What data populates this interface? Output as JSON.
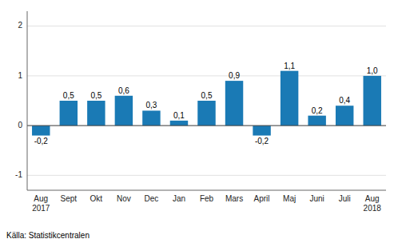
{
  "chart_data": {
    "type": "bar",
    "categories": [
      "Aug\n2017",
      "Sept",
      "Okt",
      "Nov",
      "Dec",
      "Jan",
      "Feb",
      "Mars",
      "April",
      "Maj",
      "Juni",
      "Juli",
      "Aug\n2018"
    ],
    "values": [
      -0.2,
      0.5,
      0.5,
      0.6,
      0.3,
      0.1,
      0.5,
      0.9,
      -0.2,
      1.1,
      0.2,
      0.4,
      1.0
    ],
    "value_labels": [
      "-0,2",
      "0,5",
      "0,5",
      "0,6",
      "0,3",
      "0,1",
      "0,5",
      "0,9",
      "-0,2",
      "1,1",
      "0,2",
      "0,4",
      "1,0"
    ],
    "data_labels": true,
    "color": "#1a7ab5",
    "ylim": [
      -1.3,
      2.3
    ],
    "yticks": [
      -1,
      0,
      1,
      2
    ],
    "grid": true,
    "annotations": [
      "Källa: Statistikcentralen"
    ]
  }
}
